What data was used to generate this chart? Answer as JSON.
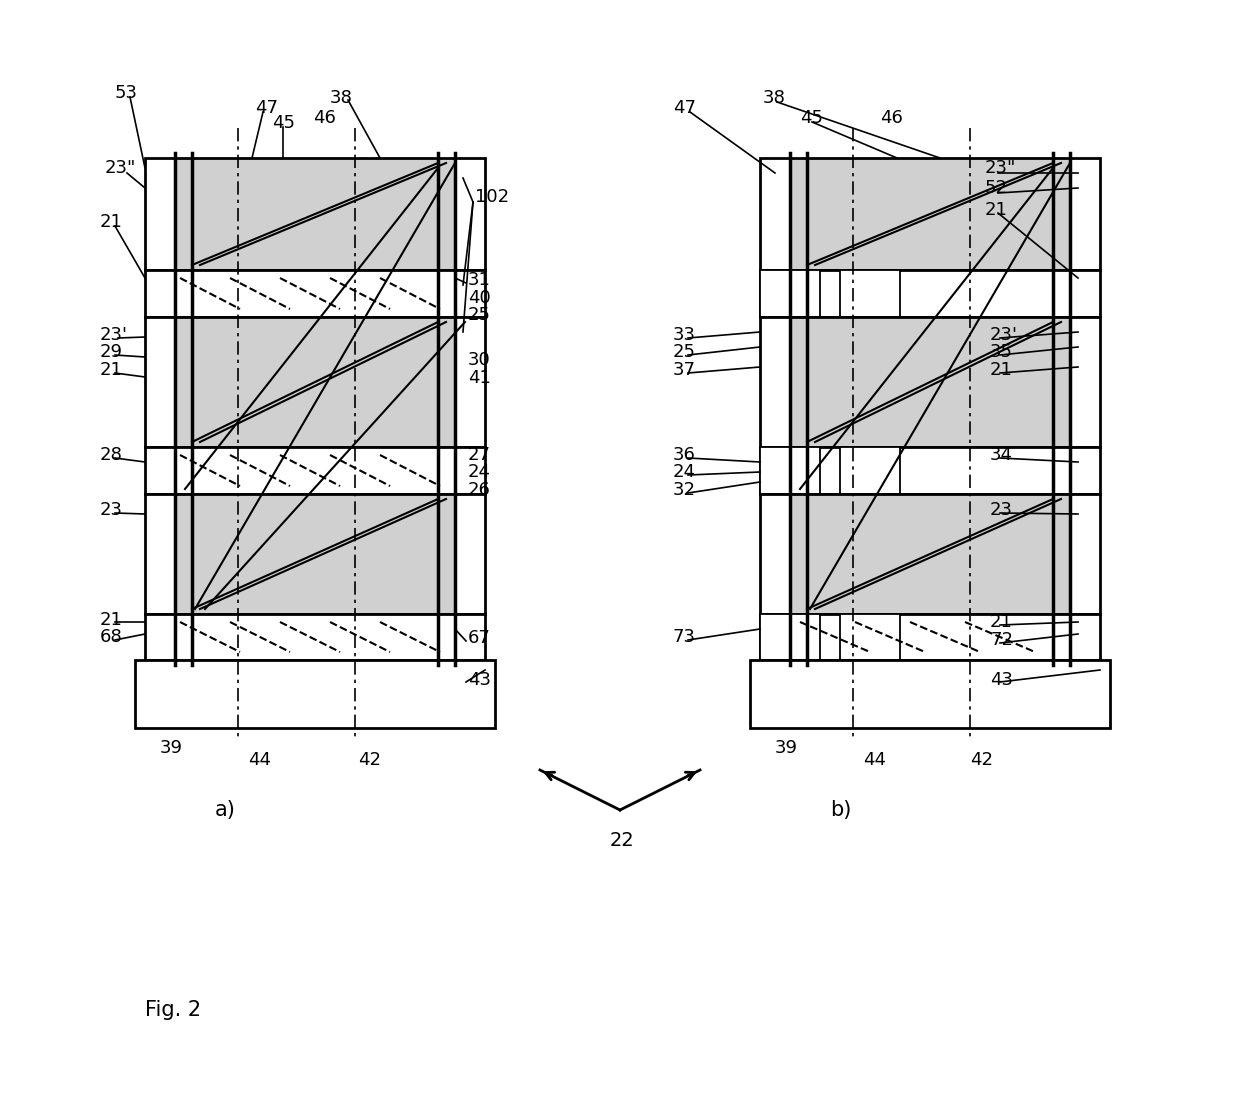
{
  "bg_color": "#ffffff",
  "fig_label": "Fig. 2",
  "sub_a": "a)",
  "sub_b": "b)",
  "arrow_label": "22",
  "hatch_fill": "#d0d0d0",
  "lw_main": 2.0,
  "lw_thin": 1.3,
  "fs_label": 13
}
